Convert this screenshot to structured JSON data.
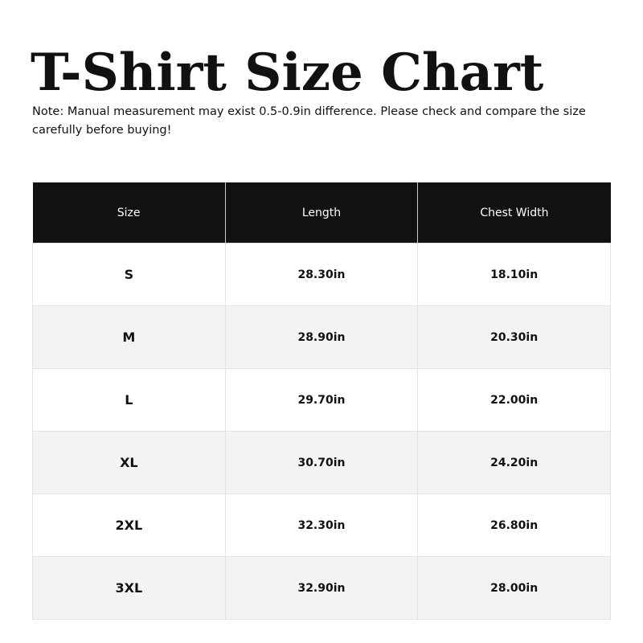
{
  "title": "T-Shirt Size Chart",
  "note": "Note: Manual measurement may exist 0.5-0.9in difference. Please check and compare the size carefully before buying!",
  "table": {
    "headers": [
      "Size",
      "Length",
      "Chest Width"
    ],
    "rows": [
      [
        "S",
        "28.30in",
        "18.10in"
      ],
      [
        "M",
        "28.90in",
        "20.30in"
      ],
      [
        "L",
        "29.70in",
        "22.00in"
      ],
      [
        "XL",
        "30.70in",
        "24.20in"
      ],
      [
        "2XL",
        "32.30in",
        "26.80in"
      ],
      [
        "3XL",
        "32.90in",
        "28.00in"
      ]
    ]
  },
  "colors": {
    "header_bg": "#111111",
    "stripe": "#f3f3f3"
  }
}
